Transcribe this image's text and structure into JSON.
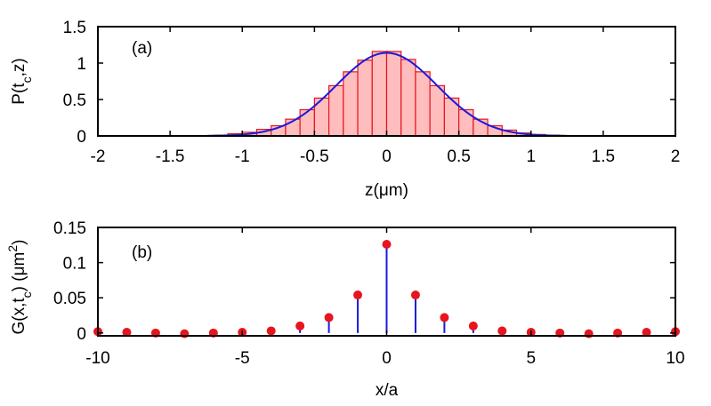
{
  "chart_data": [
    {
      "panel": "(a)",
      "type": "bar",
      "title": "",
      "xlabel": "z(μm)",
      "ylabel": "P(tc,z)",
      "xlim": [
        -2,
        2
      ],
      "ylim": [
        0,
        1.5
      ],
      "xticks": [
        "-2",
        "-1.5",
        "-1",
        "-0.5",
        "0",
        "0.5",
        "1",
        "1.5",
        "2"
      ],
      "yticks": [
        "0",
        "0.5",
        "1",
        "1.5"
      ],
      "grid": false,
      "colors": {
        "bars_fill": "#ffbdbd",
        "bars_edge": "#e8141e",
        "curve": "#1a1adc"
      },
      "histogram": {
        "bin_width": 0.1,
        "bin_centers": [
          -1.15,
          -1.05,
          -0.95,
          -0.85,
          -0.75,
          -0.65,
          -0.55,
          -0.45,
          -0.35,
          -0.25,
          -0.15,
          -0.05,
          0.05,
          0.15,
          0.25,
          0.35,
          0.45,
          0.55,
          0.65,
          0.75,
          0.85,
          0.95,
          1.05,
          1.15
        ],
        "values": [
          0.01,
          0.03,
          0.05,
          0.09,
          0.14,
          0.23,
          0.36,
          0.52,
          0.69,
          0.88,
          1.04,
          1.16,
          1.16,
          1.05,
          0.88,
          0.69,
          0.52,
          0.36,
          0.23,
          0.14,
          0.08,
          0.04,
          0.02,
          0.01
        ]
      },
      "gaussian_fit": {
        "amplitude": 1.14,
        "mean": 0.0,
        "sigma": 0.35
      }
    },
    {
      "panel": "(b)",
      "type": "scatter",
      "title": "",
      "xlabel": "x/a",
      "ylabel": "G(x,tc) (μm²)",
      "xlim": [
        -10,
        10
      ],
      "ylim": [
        -0.004,
        0.15
      ],
      "xticks": [
        "-10",
        "-5",
        "0",
        "5",
        "10"
      ],
      "yticks": [
        "0",
        "0.05",
        "0.1",
        "0.15"
      ],
      "grid": false,
      "colors": {
        "points": "#e8141e",
        "stems": "#1a1adc"
      },
      "x": [
        -10,
        -9,
        -8,
        -7,
        -6,
        -5,
        -4,
        -3,
        -2,
        -1,
        0,
        1,
        2,
        3,
        4,
        5,
        6,
        7,
        8,
        9,
        10
      ],
      "points": [
        0.002,
        0.001,
        0.0,
        -0.001,
        0.0,
        0.001,
        0.003,
        0.01,
        0.022,
        0.054,
        0.126,
        0.054,
        0.022,
        0.01,
        0.003,
        0.001,
        0.0,
        -0.001,
        0.0,
        0.001,
        0.002
      ],
      "stems": [
        0.0,
        0.0,
        0.0,
        0.0,
        0.0,
        0.0,
        0.0,
        0.006,
        0.017,
        0.048,
        0.122,
        0.048,
        0.017,
        0.006,
        0.0,
        0.0,
        0.0,
        0.0,
        0.0,
        0.0,
        0.0
      ]
    }
  ]
}
